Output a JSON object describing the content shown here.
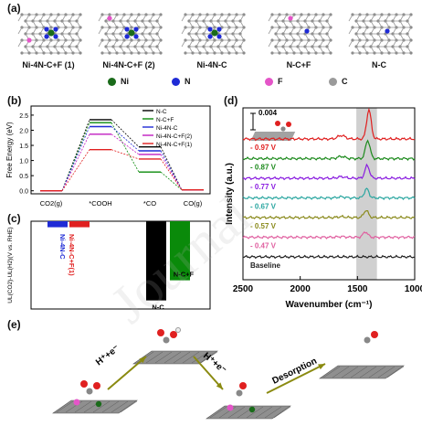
{
  "panel_labels": {
    "a": "(a)",
    "b": "(b)",
    "c": "(c)",
    "d": "(d)",
    "e": "(e)"
  },
  "structures": [
    {
      "label": "Ni-4N-C+F (1)",
      "has_ni": true,
      "has_f": true
    },
    {
      "label": "Ni-4N-C+F (2)",
      "has_ni": true,
      "has_f": true
    },
    {
      "label": "Ni-4N-C",
      "has_ni": true,
      "has_f": false
    },
    {
      "label": "N-C+F",
      "has_ni": false,
      "has_f": true
    },
    {
      "label": "N-C",
      "has_ni": false,
      "has_f": false
    }
  ],
  "atom_legend": [
    {
      "label": "Ni",
      "color": "#1a6b1a"
    },
    {
      "label": "N",
      "color": "#1f2bd6"
    },
    {
      "label": "F",
      "color": "#e455c8"
    },
    {
      "label": "C",
      "color": "#9a9a9a"
    }
  ],
  "chart_data": [
    {
      "panel": "b",
      "type": "line",
      "ylabel": "Free Energy (eV)",
      "categories": [
        "CO2(g)",
        "*COOH",
        "*CO",
        "CO(g)"
      ],
      "yticks": [
        "0.0",
        "0.5",
        "1.0",
        "1.5",
        "2.0",
        "2.5"
      ],
      "ylim": [
        -0.1,
        2.8
      ],
      "series": [
        {
          "name": "N-C",
          "color": "#000000",
          "values": [
            0,
            2.35,
            1.45,
            0.03
          ]
        },
        {
          "name": "N-C+F",
          "color": "#0a8a0a",
          "values": [
            0,
            2.25,
            0.62,
            0.03
          ]
        },
        {
          "name": "Ni-4N-C",
          "color": "#1f2bd6",
          "values": [
            0,
            2.12,
            1.32,
            0.03
          ]
        },
        {
          "name": "Ni-4N-C+F(2)",
          "color": "#c01dc0",
          "values": [
            0,
            1.87,
            1.2,
            0.03
          ]
        },
        {
          "name": "Ni-4N-C+F(1)",
          "color": "#e02020",
          "values": [
            0,
            1.36,
            1.05,
            0.03
          ]
        }
      ]
    },
    {
      "panel": "c",
      "type": "bar",
      "ylabel": "UL(CO2)-UL(H2)(V vs. RHE)",
      "categories": [
        "Ni-4N-C",
        "Ni-4N-C+F(1)",
        "N-C",
        "N-C+F"
      ],
      "values": [
        -0.14,
        -0.14,
        -1.85,
        -1.38
      ],
      "colors": [
        "#1f2bd6",
        "#e02020",
        "#000000",
        "#0a8a0a"
      ],
      "ylim": [
        -2.05,
        0
      ]
    },
    {
      "panel": "d",
      "type": "line",
      "xlabel": "Wavenumber (cm⁻¹)",
      "ylabel": "Intensity  (a.u.)",
      "xticks": [
        "2500",
        "2000",
        "1500",
        "1000"
      ],
      "xlim": [
        2500,
        1000
      ],
      "scale_bar": "0.004",
      "highlight_band": [
        1510,
        1330
      ],
      "series": [
        {
          "name": "- 0.97 V",
          "color": "#e02020",
          "peak": 1400,
          "height": 32
        },
        {
          "name": "- 0.87 V",
          "color": "#1c8a1c",
          "peak": 1410,
          "height": 20
        },
        {
          "name": "- 0.77 V",
          "color": "#8a1ce0",
          "peak": 1415,
          "height": 14
        },
        {
          "name": "- 0.67 V",
          "color": "#2aa6a0",
          "peak": 1420,
          "height": 10
        },
        {
          "name": "- 0.57 V",
          "color": "#8a8a1c",
          "peak": 1425,
          "height": 8
        },
        {
          "name": "- 0.47 V",
          "color": "#e060a0",
          "peak": 1430,
          "height": 6
        },
        {
          "name": "Baseline",
          "color": "#222222",
          "peak": 1430,
          "height": 0
        }
      ]
    }
  ],
  "mechanism": {
    "step1": "H⁺+e⁻",
    "step2": "H⁺+e⁻",
    "step3": "Desorption"
  }
}
